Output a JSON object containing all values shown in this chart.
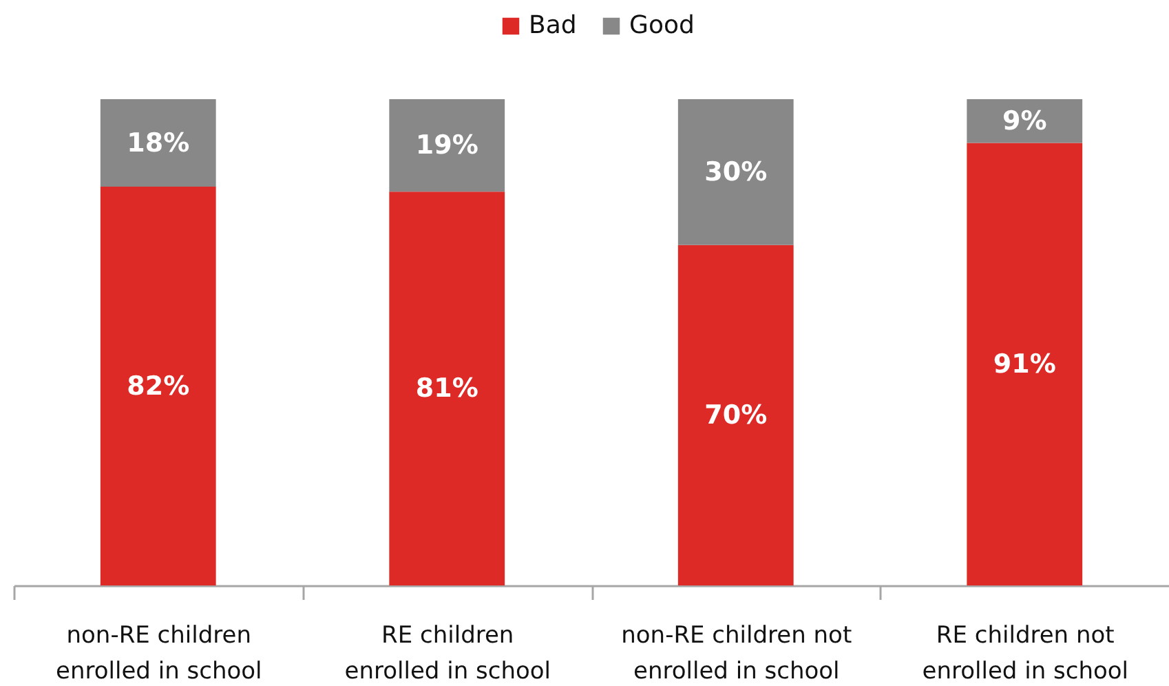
{
  "chart_data": {
    "type": "bar",
    "stacked": true,
    "legend": "top",
    "categories": [
      "non-RE children enrolled in school",
      "RE children enrolled in school",
      "non-RE children not enrolled in school",
      "RE children not enrolled in school"
    ],
    "series": [
      {
        "name": "Bad",
        "color": "#dd2a27",
        "values": [
          82,
          81,
          70,
          91
        ],
        "value_labels": [
          "82%",
          "81%",
          "70%",
          "91%"
        ]
      },
      {
        "name": "Good",
        "color": "#888888",
        "values": [
          18,
          19,
          30,
          9
        ],
        "value_labels": [
          "18%",
          "19%",
          "30%",
          "9%"
        ]
      }
    ],
    "ylim": [
      0,
      100
    ],
    "tick_labels": "x"
  }
}
